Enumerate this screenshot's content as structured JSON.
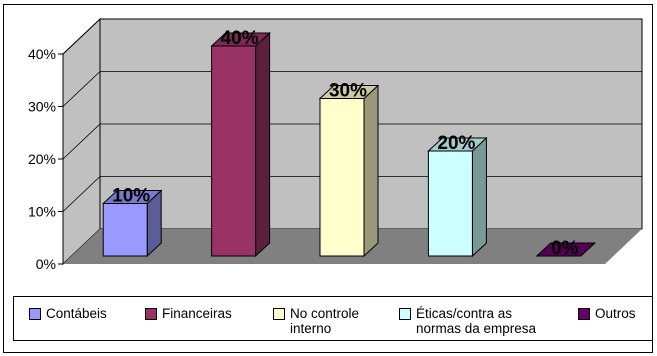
{
  "chart_data": {
    "type": "bar",
    "title": "",
    "xlabel": "",
    "ylabel": "",
    "ylim": [
      0,
      40
    ],
    "y_ticks": [
      "0%",
      "10%",
      "20%",
      "30%",
      "40%"
    ],
    "grid": true,
    "legend_position": "bottom",
    "three_d": true,
    "categories": [
      "Contábeis",
      "Financeiras",
      "No controle\ninterno",
      "Éticas/contra as\nnormas da empresa",
      "Outros"
    ],
    "values": [
      10,
      40,
      30,
      20,
      0
    ],
    "data_labels": [
      "10%",
      "40%",
      "30%",
      "20%",
      "0%"
    ],
    "colors": [
      "#9999ff",
      "#993366",
      "#ffffcc",
      "#ccffff",
      "#660066"
    ],
    "wall_color": "#c0c0c0",
    "floor_color": "#808080"
  }
}
